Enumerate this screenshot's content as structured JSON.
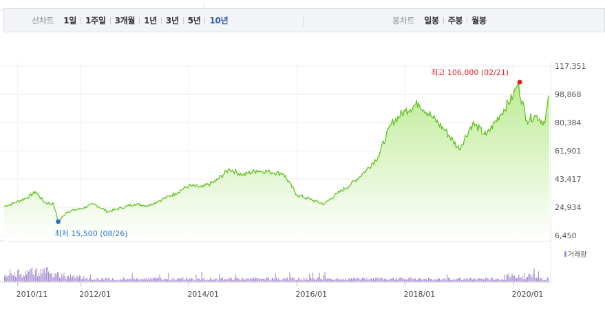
{
  "tabs": {
    "line_chart_label": "선차트",
    "periods": [
      "1일",
      "1주일",
      "3개월",
      "1년",
      "3년",
      "5년",
      "10년"
    ],
    "active_period": "10년",
    "candle_chart_label": "봉차트",
    "candles": [
      "일봉",
      "주봉",
      "월봉"
    ]
  },
  "colors": {
    "price_line": "#5fc31f",
    "price_fill_top": "#b9ea8f",
    "volume_bar": "#a58ad0",
    "high_marker": "#e02020",
    "low_marker": "#2b6fd0",
    "active_tab": "#2d5bb5"
  },
  "chart_data": {
    "type": "area",
    "title": "",
    "x_range": [
      "2010-08",
      "2020-09"
    ],
    "y_ticks": [
      117351,
      98868,
      80384,
      61901,
      43417,
      24934,
      6450
    ],
    "ylim": [
      6450,
      117351
    ],
    "x_tick_labels": [
      "2010/11",
      "2012/01",
      "2014/01",
      "2016/01",
      "2018/01",
      "2020/01"
    ],
    "grid": true,
    "high_annotation": "최고 106,000 (02/21)",
    "low_annotation": "최저 15,500 (08/26)",
    "high": {
      "date": "2020-02",
      "value": 106000
    },
    "low": {
      "date": "2011-08",
      "value": 15500
    },
    "volume_label": "거래량",
    "series": [
      {
        "points": [
          [
            "2010-08",
            25500
          ],
          [
            "2010-10",
            27500
          ],
          [
            "2011-01",
            31000
          ],
          [
            "2011-03",
            35000
          ],
          [
            "2011-05",
            28000
          ],
          [
            "2011-07",
            27000
          ],
          [
            "2011-08",
            15500
          ],
          [
            "2011-10",
            22000
          ],
          [
            "2012-01",
            24000
          ],
          [
            "2012-04",
            27000
          ],
          [
            "2012-07",
            22000
          ],
          [
            "2012-10",
            24500
          ],
          [
            "2013-01",
            27000
          ],
          [
            "2013-04",
            26000
          ],
          [
            "2013-07",
            30000
          ],
          [
            "2013-10",
            34000
          ],
          [
            "2014-01",
            39000
          ],
          [
            "2014-04",
            38000
          ],
          [
            "2014-07",
            42000
          ],
          [
            "2014-10",
            50000
          ],
          [
            "2015-01",
            46000
          ],
          [
            "2015-04",
            49000
          ],
          [
            "2015-07",
            48000
          ],
          [
            "2015-10",
            47000
          ],
          [
            "2016-01",
            33000
          ],
          [
            "2016-04",
            30000
          ],
          [
            "2016-07",
            27000
          ],
          [
            "2016-10",
            34000
          ],
          [
            "2017-01",
            40000
          ],
          [
            "2017-04",
            48000
          ],
          [
            "2017-07",
            58000
          ],
          [
            "2017-10",
            80000
          ],
          [
            "2018-01",
            88000
          ],
          [
            "2018-04",
            93000
          ],
          [
            "2018-07",
            84000
          ],
          [
            "2018-10",
            75000
          ],
          [
            "2019-01",
            63000
          ],
          [
            "2019-04",
            80000
          ],
          [
            "2019-07",
            72000
          ],
          [
            "2019-10",
            85000
          ],
          [
            "2020-01",
            98000
          ],
          [
            "2020-02",
            106000
          ],
          [
            "2020-04",
            82000
          ],
          [
            "2020-06",
            85000
          ],
          [
            "2020-08",
            80000
          ],
          [
            "2020-09",
            98000
          ]
        ]
      }
    ]
  }
}
